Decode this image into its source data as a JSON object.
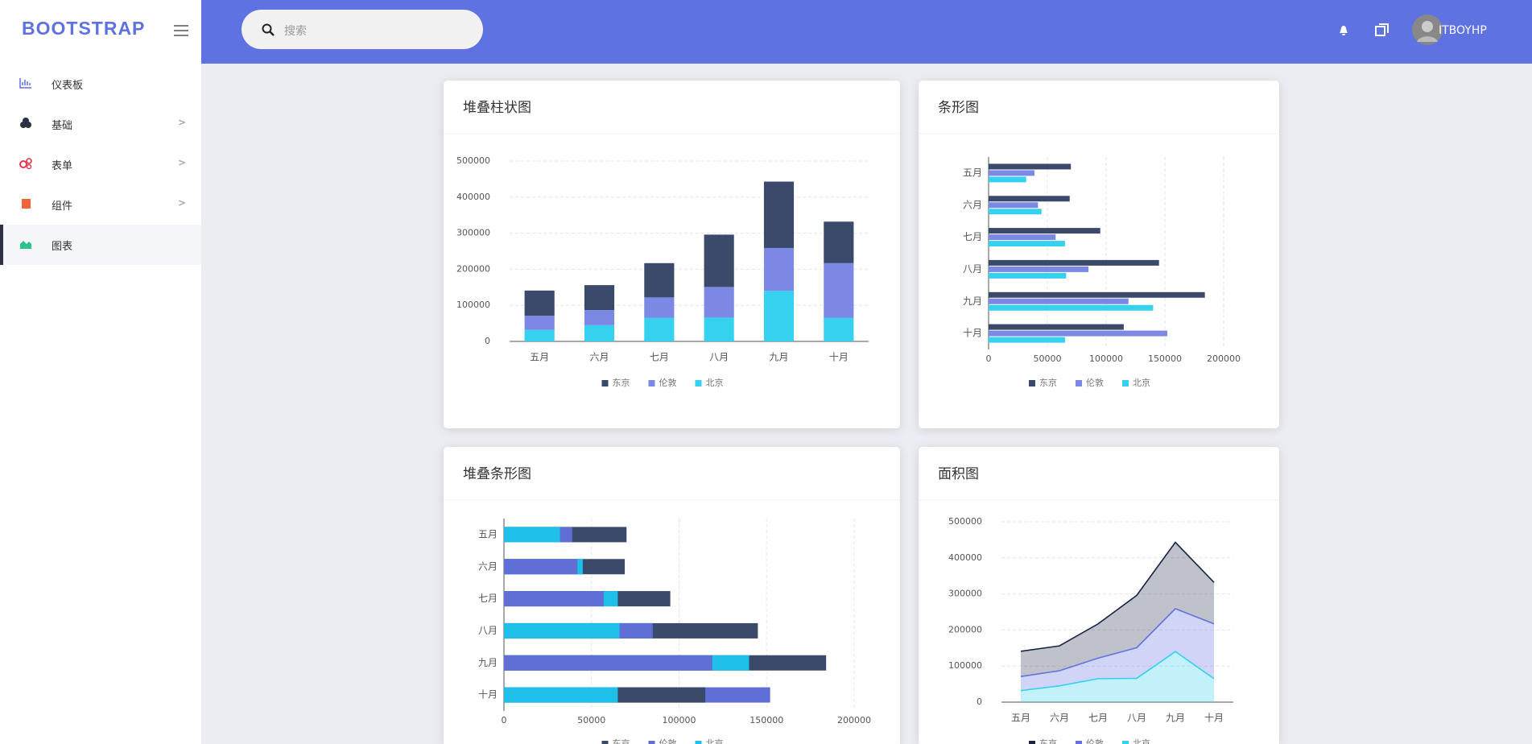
{
  "header": {
    "brand": "BOOTSTRAP",
    "search_placeholder": "搜索",
    "user": "ITBOYHP"
  },
  "sidebar": {
    "items": [
      "仪表板",
      "基础",
      "表单",
      "组件",
      "图表"
    ]
  },
  "chart_data": [
    {
      "type": "bar",
      "title": "堆叠柱状图",
      "stacked": true,
      "horizontal": false,
      "categories": [
        "五月",
        "六月",
        "七月",
        "八月",
        "九月",
        "十月"
      ],
      "series": [
        {
          "name": "东京",
          "color": "#3b4a6b",
          "values": [
            70000,
            69000,
            95000,
            145000,
            184000,
            115000
          ]
        },
        {
          "name": "伦敦",
          "color": "#7b88e4",
          "values": [
            39000,
            42000,
            57000,
            85000,
            119000,
            152000
          ]
        },
        {
          "name": "北京",
          "color": "#36d1ef",
          "values": [
            32000,
            45000,
            65000,
            66000,
            140000,
            65000
          ]
        }
      ],
      "ylim": [
        0,
        500000
      ],
      "yticks": [
        0,
        100000,
        200000,
        300000,
        400000,
        500000
      ],
      "grid": true
    },
    {
      "type": "bar",
      "title": "条形图",
      "stacked": false,
      "horizontal": true,
      "categories": [
        "五月",
        "六月",
        "七月",
        "八月",
        "九月",
        "十月"
      ],
      "series": [
        {
          "name": "东京",
          "color": "#3b4a6b",
          "values": [
            70000,
            69000,
            95000,
            145000,
            184000,
            115000
          ]
        },
        {
          "name": "伦敦",
          "color": "#7b88e4",
          "values": [
            39000,
            42000,
            57000,
            85000,
            119000,
            152000
          ]
        },
        {
          "name": "北京",
          "color": "#36d1ef",
          "values": [
            32000,
            45000,
            65000,
            66000,
            140000,
            65000
          ]
        }
      ],
      "xlim": [
        0,
        200000
      ],
      "xticks": [
        0,
        50000,
        100000,
        150000,
        200000
      ],
      "grid": true
    },
    {
      "type": "bar",
      "title": "堆叠条形图",
      "stacked": false,
      "overlay": true,
      "horizontal": true,
      "categories": [
        "五月",
        "六月",
        "七月",
        "八月",
        "九月",
        "十月"
      ],
      "series": [
        {
          "name": "东京",
          "color": "#3b4a6b",
          "values": [
            70000,
            69000,
            95000,
            145000,
            184000,
            115000
          ]
        },
        {
          "name": "伦敦",
          "color": "#5f6fd6",
          "values": [
            39000,
            42000,
            57000,
            85000,
            119000,
            152000
          ]
        },
        {
          "name": "北京",
          "color": "#1ec0ea",
          "values": [
            32000,
            45000,
            65000,
            66000,
            140000,
            65000
          ]
        }
      ],
      "xlim": [
        0,
        200000
      ],
      "xticks": [
        0,
        50000,
        100000,
        150000,
        200000
      ],
      "grid": true
    },
    {
      "type": "area",
      "title": "面积图",
      "stacked": true,
      "categories": [
        "五月",
        "六月",
        "七月",
        "八月",
        "九月",
        "十月"
      ],
      "series": [
        {
          "name": "东京",
          "color": "#1a2544",
          "values": [
            70000,
            69000,
            95000,
            145000,
            184000,
            115000
          ]
        },
        {
          "name": "伦敦",
          "color": "#6270e0",
          "values": [
            39000,
            42000,
            57000,
            85000,
            119000,
            152000
          ]
        },
        {
          "name": "北京",
          "color": "#36d1ef",
          "values": [
            32000,
            45000,
            65000,
            66000,
            140000,
            65000
          ]
        }
      ],
      "ylim": [
        0,
        500000
      ],
      "yticks": [
        0,
        100000,
        200000,
        300000,
        400000,
        500000
      ],
      "grid": true
    }
  ]
}
